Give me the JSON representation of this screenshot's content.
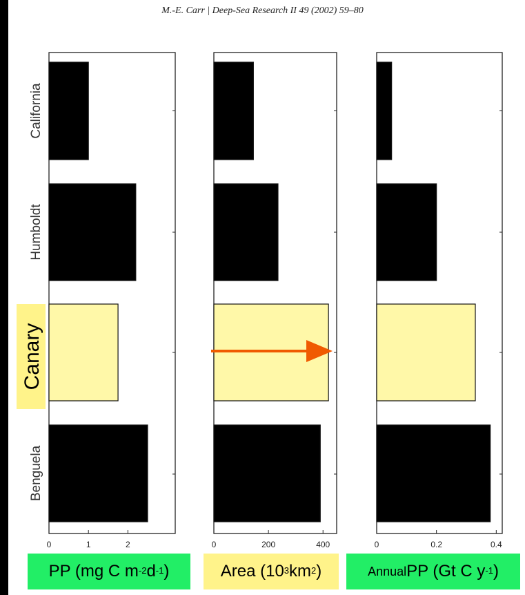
{
  "citation": "M.-E. Carr | Deep-Sea Research II 49 (2002) 59–80",
  "colors": {
    "bar": "#000000",
    "highlight": "#fff8a8",
    "arrow": "#f05a00",
    "green_label": "#22ee66",
    "yellow_label": "#fff38a"
  },
  "units": {
    "pp": {
      "pre": "PP (mg C m",
      "sup1": "-2",
      "mid": " d",
      "sup2": "-1",
      "post": ")"
    },
    "area": {
      "pre": "Area (10",
      "sup1": "3",
      "mid": " km",
      "sup2": "2",
      "post": ")"
    },
    "annual": {
      "small": "Annual",
      "pre": " PP (Gt C y",
      "sup1": "-1",
      "post": ")"
    }
  },
  "chart_data": [
    {
      "type": "bar",
      "orientation": "horizontal",
      "categories": [
        "California",
        "Humboldt",
        "Canary",
        "Benguela"
      ],
      "values": [
        1.0,
        2.2,
        1.75,
        2.5
      ],
      "highlight": "Canary",
      "xlim": [
        0,
        3.2
      ],
      "xticks": [
        0,
        1,
        2
      ],
      "xlabel": "PP (mg C m-2 d-1)"
    },
    {
      "type": "bar",
      "orientation": "horizontal",
      "categories": [
        "California",
        "Humboldt",
        "Canary",
        "Benguela"
      ],
      "values": [
        145,
        235,
        420,
        390
      ],
      "highlight": "Canary",
      "xlim": [
        0,
        450
      ],
      "xticks": [
        0,
        200,
        400
      ],
      "xlabel": "Area (103 km2)",
      "annotation": "arrow pointing right across Canary bar"
    },
    {
      "type": "bar",
      "orientation": "horizontal",
      "categories": [
        "California",
        "Humboldt",
        "Canary",
        "Benguela"
      ],
      "values": [
        0.05,
        0.2,
        0.33,
        0.38
      ],
      "highlight": "Canary",
      "xlim": [
        0,
        0.42
      ],
      "xticks": [
        "0",
        "0.2",
        "0.4"
      ],
      "xtick_values": [
        0,
        0.2,
        0.4
      ],
      "xlabel": "Annual PP (Gt C y-1)"
    }
  ]
}
